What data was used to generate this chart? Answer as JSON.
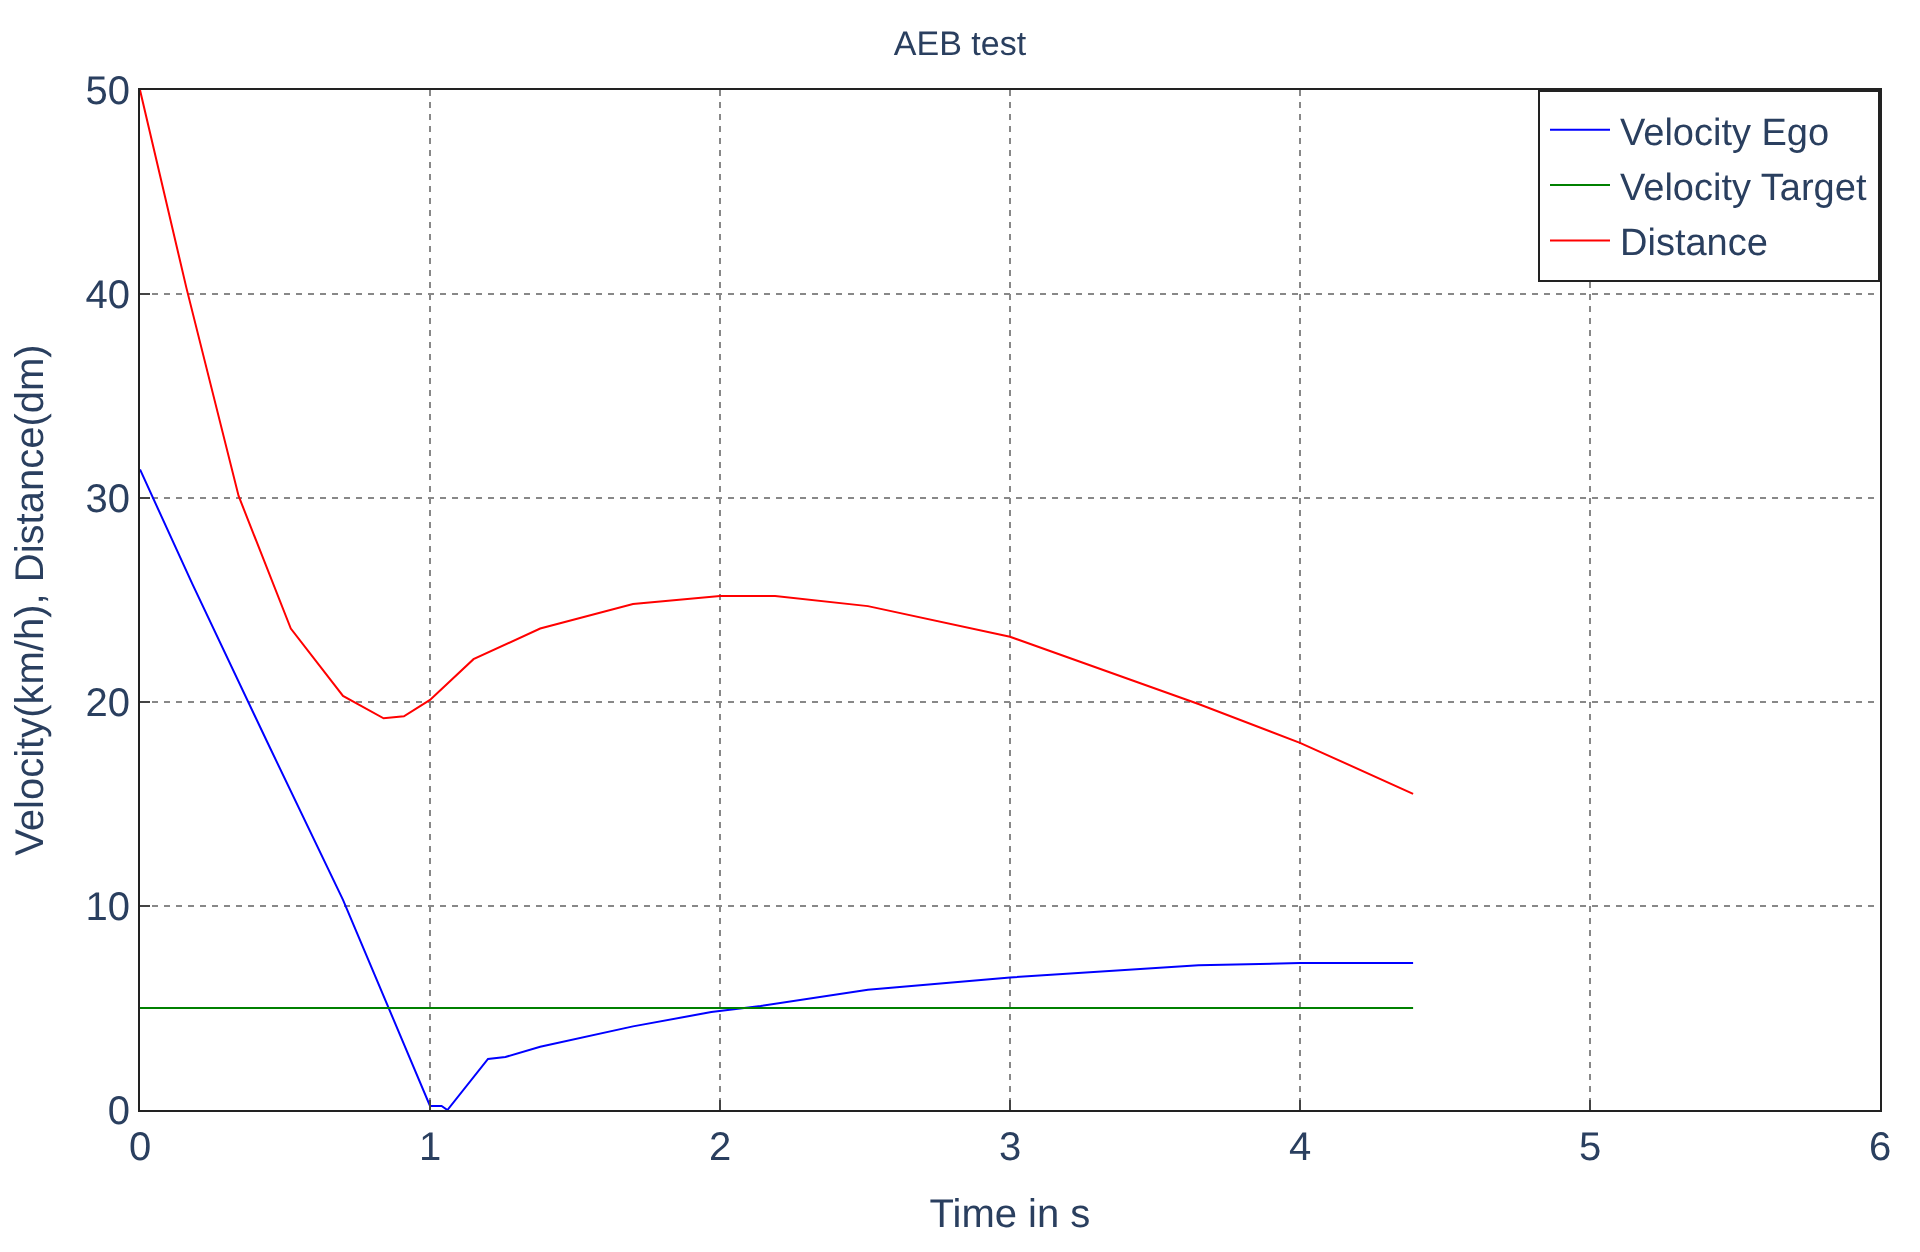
{
  "chart_data": {
    "type": "line",
    "title": "AEB test",
    "xlabel": "Time in s",
    "ylabel": "Velocity(km/h), Distance(dm)",
    "xlim": [
      0,
      6
    ],
    "xticks": [
      0,
      1,
      2,
      3,
      4,
      5,
      6
    ],
    "ylim": [
      0,
      50
    ],
    "yticks": [
      0,
      10,
      20,
      30,
      40,
      50
    ],
    "grid": true,
    "legend": "top right",
    "marker": "none",
    "line_style": "solid",
    "series": [
      {
        "name": "Velocity Ego",
        "color": "#0000ff",
        "x": [
          0,
          0.18,
          0.44,
          0.7,
          1.0,
          1.04,
          1.06,
          1.2,
          1.26,
          1.38,
          1.7,
          1.97,
          2.14,
          2.51,
          3,
          3.65,
          4,
          4.39
        ],
        "values": [
          31.4,
          25.8,
          18.0,
          10.3,
          0.2,
          0.2,
          0,
          2.5,
          2.6,
          3.1,
          4.1,
          4.8,
          5.1,
          5.9,
          6.5,
          7.1,
          7.2,
          7.2
        ]
      },
      {
        "name": "Velocity Target",
        "color": "#008000",
        "x": [
          0,
          4.39
        ],
        "values": [
          5,
          5
        ]
      },
      {
        "name": "Distance",
        "color": "#ff0000",
        "x": [
          0,
          0.16,
          0.34,
          0.52,
          0.7,
          0.84,
          0.91,
          1.0,
          1.15,
          1.38,
          1.7,
          2.0,
          2.19,
          2.51,
          3,
          3.65,
          4,
          4.39
        ],
        "values": [
          50,
          40.3,
          30.1,
          23.6,
          20.3,
          19.2,
          19.3,
          20.1,
          22.1,
          23.6,
          24.8,
          25.2,
          25.2,
          24.7,
          23.2,
          19.9,
          18.0,
          15.5
        ]
      }
    ]
  }
}
